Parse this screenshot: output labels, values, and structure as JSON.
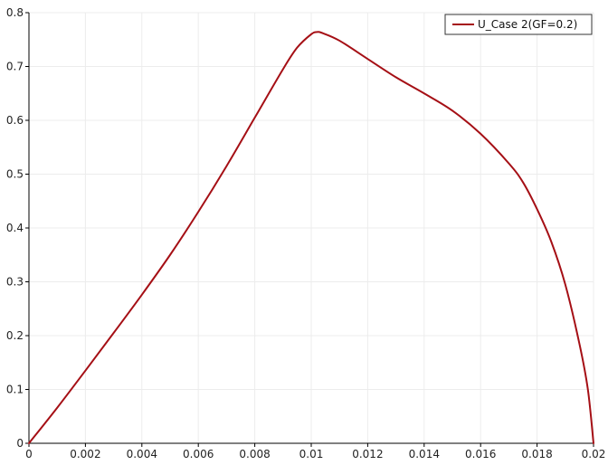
{
  "chart_data": {
    "type": "line",
    "title": "",
    "xlabel": "",
    "ylabel": "",
    "xlim": [
      0,
      0.02
    ],
    "ylim": [
      0,
      0.8
    ],
    "x_ticks": [
      0,
      0.002,
      0.004,
      0.006,
      0.008,
      0.01,
      0.012,
      0.014,
      0.016,
      0.018,
      0.02
    ],
    "x_tick_labels": [
      "0",
      "0.002",
      "0.004",
      "0.006",
      "0.008",
      "0.01",
      "0.012",
      "0.014",
      "0.016",
      "0.018",
      "0.02"
    ],
    "y_ticks": [
      0,
      0.1,
      0.2,
      0.3,
      0.4,
      0.5,
      0.6,
      0.7,
      0.8
    ],
    "y_tick_labels": [
      "0",
      "0.1",
      "0.2",
      "0.3",
      "0.4",
      "0.5",
      "0.6",
      "0.7",
      "0.8"
    ],
    "grid": true,
    "legend_position": "top-right",
    "series": [
      {
        "name": "U_Case 2(GF=0.2)",
        "color": "#a50f15",
        "x": [
          0,
          0.001,
          0.002,
          0.003,
          0.004,
          0.005,
          0.006,
          0.007,
          0.008,
          0.009,
          0.0095,
          0.01,
          0.0102,
          0.0104,
          0.011,
          0.012,
          0.013,
          0.014,
          0.015,
          0.016,
          0.017,
          0.0175,
          0.018,
          0.0185,
          0.019,
          0.0195,
          0.0198,
          0.02
        ],
        "y": [
          0,
          0.066,
          0.135,
          0.205,
          0.276,
          0.35,
          0.43,
          0.515,
          0.605,
          0.695,
          0.735,
          0.76,
          0.764,
          0.762,
          0.748,
          0.714,
          0.68,
          0.65,
          0.618,
          0.575,
          0.52,
          0.485,
          0.435,
          0.375,
          0.295,
          0.185,
          0.1,
          0
        ]
      }
    ]
  }
}
